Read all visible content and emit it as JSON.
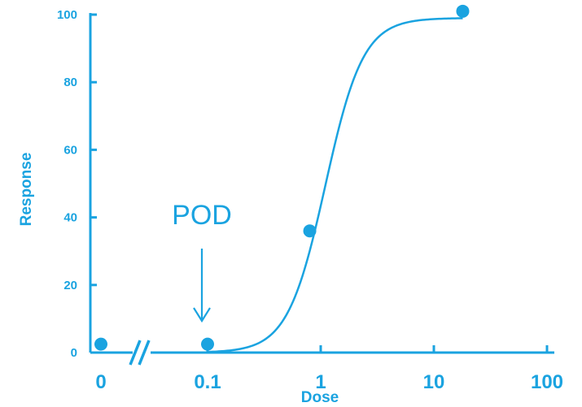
{
  "chart_data": {
    "type": "scatter",
    "xlabel": "Dose",
    "ylabel": "Response",
    "x_scale": "log",
    "x_axis_break": true,
    "xticks": [
      {
        "value": 0,
        "label": "0"
      },
      {
        "value": 0.1,
        "label": "0.1"
      },
      {
        "value": 1,
        "label": "1"
      },
      {
        "value": 10,
        "label": "10"
      },
      {
        "value": 100,
        "label": "100"
      }
    ],
    "yticks": [
      0,
      20,
      40,
      60,
      80,
      100
    ],
    "ylim": [
      0,
      100
    ],
    "grid": false,
    "points": [
      {
        "x": 0,
        "y": 2.5
      },
      {
        "x": 0.1,
        "y": 2.5
      },
      {
        "x": 0.8,
        "y": 36
      },
      {
        "x": 18,
        "y": 101
      }
    ],
    "fit_curve": {
      "type": "sigmoid",
      "bottom": 0,
      "top": 99,
      "ec50": 1.1,
      "hill": 2.6,
      "x_range": [
        0.1,
        18
      ]
    },
    "annotation": {
      "text": "POD",
      "x": 0.1,
      "arrow": "down"
    },
    "color": "#1aa3e0"
  }
}
